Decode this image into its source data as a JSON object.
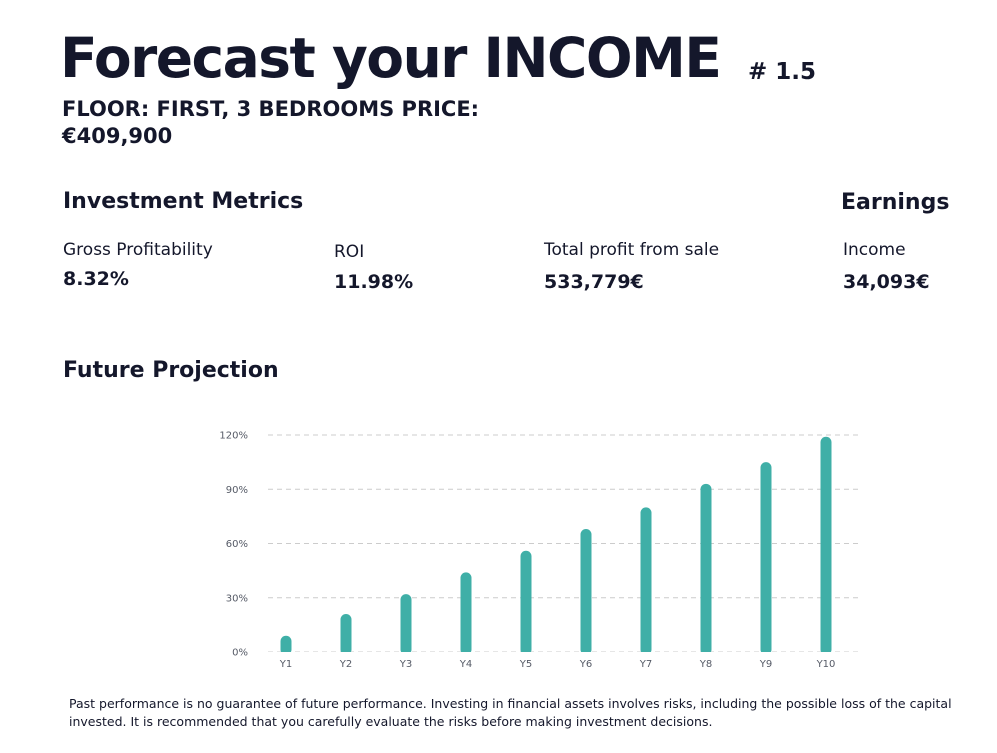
{
  "header": {
    "title": "Forecast your INCOME",
    "page_number": "# 1.5",
    "subtitle": "FLOOR: FIRST, 3 BEDROOMS PRICE: €409,900"
  },
  "investment_metrics": {
    "heading": "Investment Metrics",
    "gross_profitability": {
      "label": "Gross Profitability",
      "value": "8.32%"
    },
    "roi": {
      "label": "ROI",
      "value": "11.98%"
    },
    "total_profit": {
      "label": "Total profit from sale",
      "value": "533,779€"
    }
  },
  "earnings": {
    "heading": "Earnings",
    "income": {
      "label": "Income",
      "value": "34,093€"
    }
  },
  "projection": {
    "heading": "Future Projection"
  },
  "chart_data": {
    "type": "bar",
    "categories": [
      "Y1",
      "Y2",
      "Y3",
      "Y4",
      "Y5",
      "Y6",
      "Y7",
      "Y8",
      "Y9",
      "Y10"
    ],
    "values": [
      9,
      21,
      32,
      44,
      56,
      68,
      80,
      93,
      105,
      119
    ],
    "ylim": [
      0,
      120
    ],
    "yticks": [
      "0%",
      "30%",
      "60%",
      "90%",
      "120%"
    ],
    "ytick_values": [
      0,
      30,
      60,
      90,
      120
    ],
    "grid": true,
    "bar_color": "#3fafa7",
    "grid_color": "#cccccc"
  },
  "disclaimer": "Past performance is no guarantee of future performance. Investing in financial assets involves risks, including the possible loss of the capital invested. It is recommended that you carefully evaluate the risks before making investment decisions."
}
